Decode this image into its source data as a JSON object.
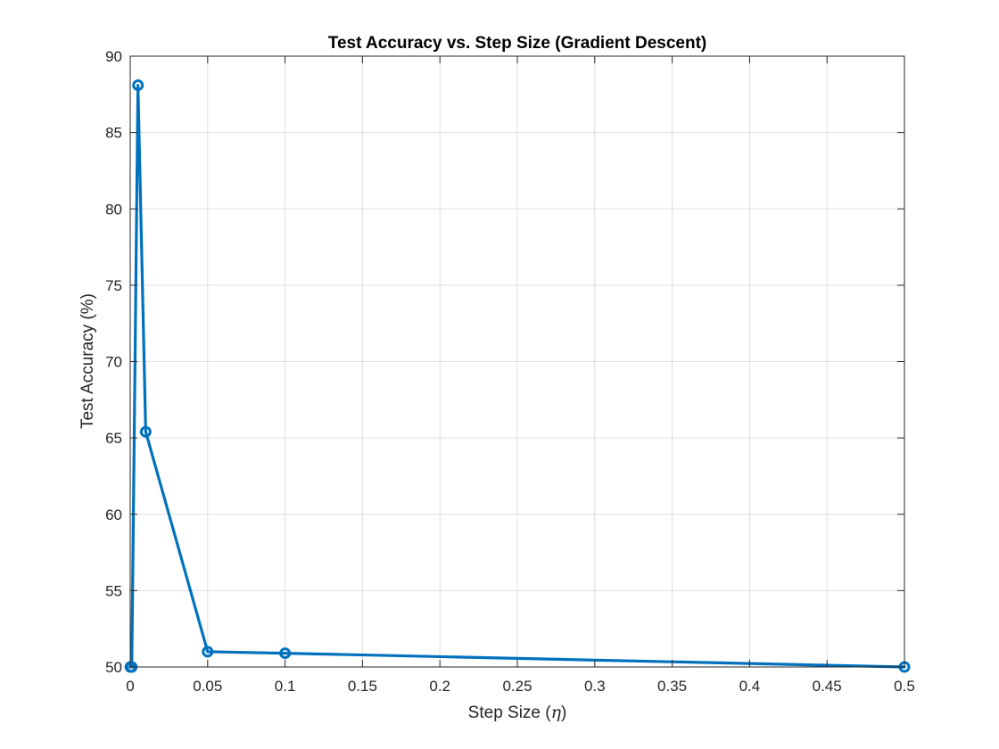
{
  "chart_data": {
    "type": "line",
    "title": "Test Accuracy vs. Step Size (Gradient Descent)",
    "xlabel": "Step Size (η)",
    "xlabel_parts": {
      "prefix": "Step Size (",
      "symbol": "η",
      "suffix": ")"
    },
    "ylabel": "Test Accuracy (%)",
    "xlim": [
      0,
      0.5
    ],
    "ylim": [
      50,
      90
    ],
    "xticks": [
      0,
      0.05,
      0.1,
      0.15,
      0.2,
      0.25,
      0.3,
      0.35,
      0.4,
      0.45,
      0.5
    ],
    "xtick_labels": [
      "0",
      "0.05",
      "0.1",
      "0.15",
      "0.2",
      "0.25",
      "0.3",
      "0.35",
      "0.4",
      "0.45",
      "0.5"
    ],
    "yticks": [
      50,
      55,
      60,
      65,
      70,
      75,
      80,
      85,
      90
    ],
    "ytick_labels": [
      "50",
      "55",
      "60",
      "65",
      "70",
      "75",
      "80",
      "85",
      "90"
    ],
    "grid": true,
    "marker": "circle",
    "line_color": "#0072BD",
    "series": [
      {
        "x": [
          0.0001,
          0.0005,
          0.001,
          0.005,
          0.01,
          0.05,
          0.1,
          0.5
        ],
        "values": [
          50.0,
          50.0,
          50.0,
          88.1,
          65.4,
          51.0,
          50.9,
          50.0
        ]
      }
    ]
  }
}
